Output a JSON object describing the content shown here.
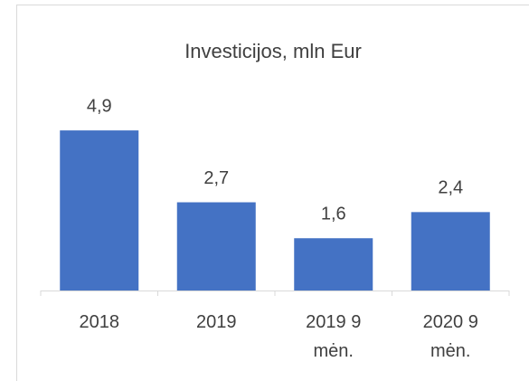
{
  "chart_data": {
    "type": "bar",
    "title": "Investicijos, mln Eur",
    "categories": [
      "2018",
      "2019",
      "2019 9 mėn.",
      "2020 9 mėn."
    ],
    "values": [
      4.9,
      2.7,
      1.6,
      2.4
    ],
    "value_labels": [
      "4,9",
      "2,7",
      "1,6",
      "2,4"
    ],
    "color": "#4472c4",
    "ylim": [
      0,
      5
    ]
  }
}
